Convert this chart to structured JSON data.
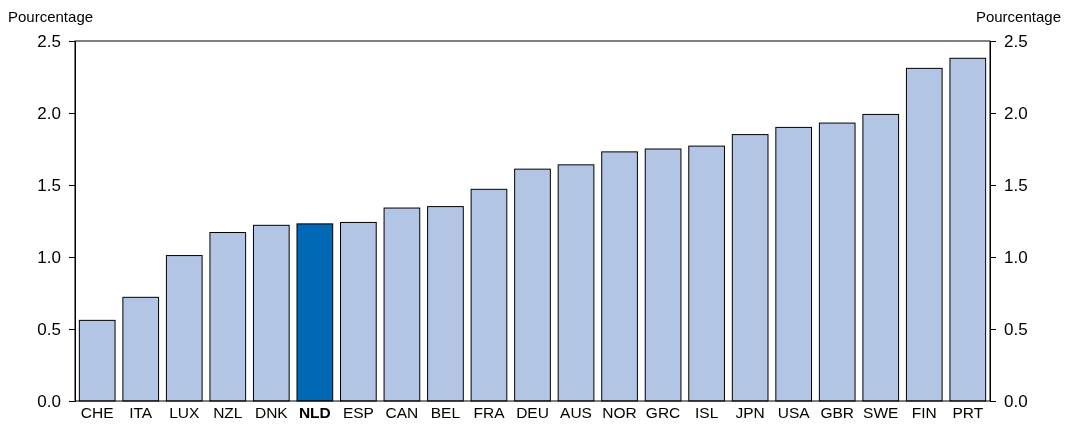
{
  "chart_data": {
    "type": "bar",
    "ylabel": "Pourcentage",
    "y2label": "Pourcentage",
    "categories": [
      "CHE",
      "ITA",
      "LUX",
      "NZL",
      "DNK",
      "NLD",
      "ESP",
      "CAN",
      "BEL",
      "FRA",
      "DEU",
      "AUS",
      "NOR",
      "GRC",
      "ISL",
      "JPN",
      "USA",
      "GBR",
      "SWE",
      "FIN",
      "PRT"
    ],
    "values": [
      0.56,
      0.72,
      1.01,
      1.17,
      1.22,
      1.23,
      1.24,
      1.34,
      1.35,
      1.47,
      1.61,
      1.64,
      1.73,
      1.75,
      1.77,
      1.85,
      1.9,
      1.93,
      1.99,
      2.31,
      2.38
    ],
    "colors": [
      "#b3c5e5",
      "#b3c5e5",
      "#b3c5e5",
      "#b3c5e5",
      "#b3c5e5",
      "#0068b5",
      "#b3c5e5",
      "#b3c5e5",
      "#b3c5e5",
      "#b3c5e5",
      "#b3c5e5",
      "#b3c5e5",
      "#b3c5e5",
      "#b3c5e5",
      "#b3c5e5",
      "#b3c5e5",
      "#b3c5e5",
      "#b3c5e5",
      "#b3c5e5",
      "#b3c5e5",
      "#b3c5e5"
    ],
    "ylim": [
      0,
      2.5
    ],
    "yticks": [
      {
        "value": 0,
        "label": "0.0"
      },
      {
        "value": 0.5,
        "label": "0.5"
      },
      {
        "value": 1,
        "label": "1.0"
      },
      {
        "value": 1.5,
        "label": "1.5"
      },
      {
        "value": 2,
        "label": "2.0"
      },
      {
        "value": 2.5,
        "label": "2.5"
      }
    ],
    "y2lim": [
      0,
      2.5
    ],
    "y2ticks": [
      {
        "value": 0,
        "label": "0.0"
      },
      {
        "value": 0.5,
        "label": "0.5"
      },
      {
        "value": 1,
        "label": "1.0"
      },
      {
        "value": 1.5,
        "label": "1.5"
      },
      {
        "value": 2,
        "label": "2.0"
      },
      {
        "value": 2.5,
        "label": "2.5"
      }
    ],
    "grid": false
  }
}
